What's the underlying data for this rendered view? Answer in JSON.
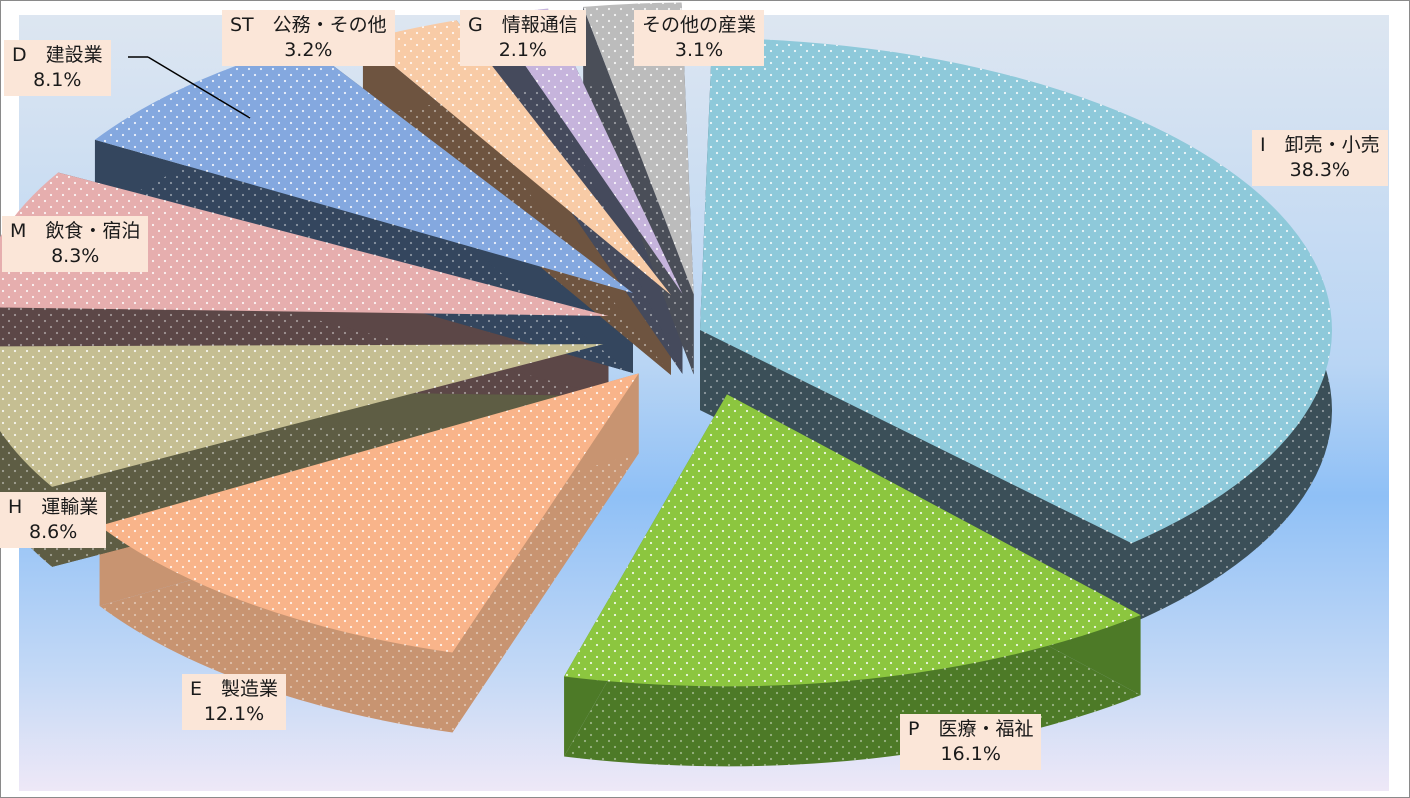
{
  "chart_data": {
    "type": "pie",
    "style": "3D exploded pie with dotted pattern fill",
    "title": "",
    "unit": "%",
    "slices": [
      {
        "name": "I　卸売・小売",
        "value": 38.3,
        "label": "38.3%",
        "color": "#8ec9da",
        "side": "#3b4f58"
      },
      {
        "name": "P　医療・福祉",
        "value": 16.1,
        "label": "16.1%",
        "color": "#8cc63f",
        "side": "#4d7a27"
      },
      {
        "name": "E　製造業",
        "value": 12.1,
        "label": "12.1%",
        "color": "#f9b48a",
        "side": "#c89471"
      },
      {
        "name": "H　運輸業",
        "value": 8.6,
        "label": "8.6%",
        "color": "#c5be92",
        "side": "#5e5d44"
      },
      {
        "name": "M　飲食・宿泊",
        "value": 8.3,
        "label": "8.3%",
        "color": "#e6aeae",
        "side": "#5c4747"
      },
      {
        "name": "D　建設業",
        "value": 8.1,
        "label": "8.1%",
        "color": "#84a8df",
        "side": "#34465e"
      },
      {
        "name": "ST　公務・その他",
        "value": 3.2,
        "label": "3.2%",
        "color": "#f8cba6",
        "side": "#6e5440"
      },
      {
        "name": "G　情報通信",
        "value": 2.1,
        "label": "2.1%",
        "color": "#c6b4dc",
        "side": "#454a5c"
      },
      {
        "name": "その他の産業",
        "value": 3.1,
        "label": "3.1%",
        "color": "#bcbcbc",
        "side": "#4a4e58"
      }
    ]
  }
}
